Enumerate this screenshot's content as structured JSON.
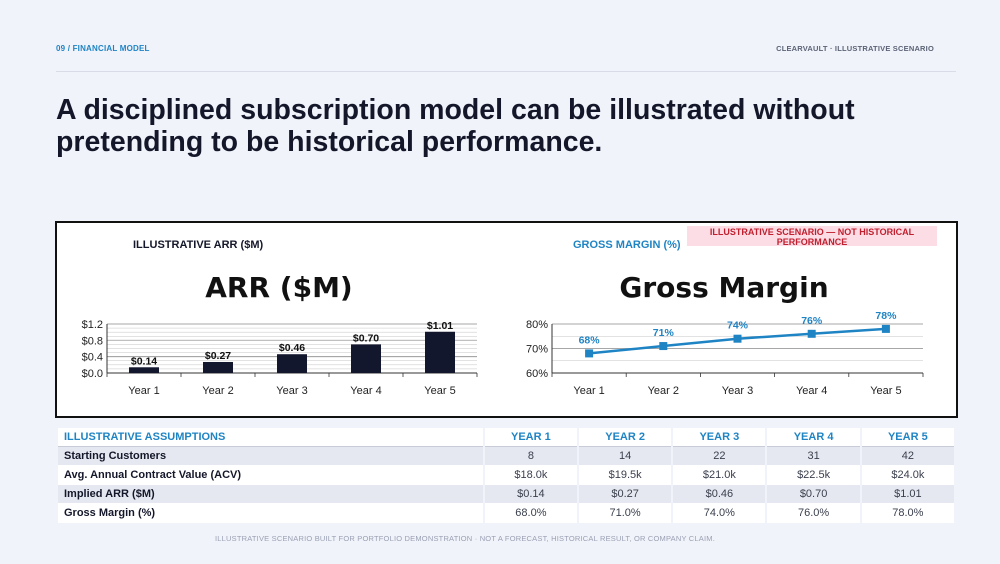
{
  "header": {
    "section": "09 / FINANCIAL MODEL",
    "brand": "CLEARVAULT · ILLUSTRATIVE SCENARIO",
    "headline": "A disciplined subscription model can be illustrated without pretending to be historical performance."
  },
  "banner": "ILLUSTRATIVE SCENARIO — NOT HISTORICAL PERFORMANCE",
  "chart_data": [
    {
      "type": "bar",
      "caption": "ILLUSTRATIVE ARR ($M)",
      "title": "ARR ($M)",
      "categories": [
        "Year 1",
        "Year 2",
        "Year 3",
        "Year 4",
        "Year 5"
      ],
      "values": [
        0.14,
        0.27,
        0.46,
        0.7,
        1.01
      ],
      "data_labels": [
        "$0.14",
        "$0.27",
        "$0.46",
        "$0.70",
        "$1.01"
      ],
      "ylim": [
        0,
        1.2
      ],
      "yticks": [
        0.0,
        0.4,
        0.8,
        1.2
      ],
      "ytick_labels": [
        "$0.0",
        "$0.4",
        "$0.8",
        "$1.2"
      ],
      "grid": true,
      "color": "#13172e"
    },
    {
      "type": "line",
      "caption": "GROSS MARGIN (%)",
      "title": "Gross Margin",
      "categories": [
        "Year 1",
        "Year 2",
        "Year 3",
        "Year 4",
        "Year 5"
      ],
      "values": [
        68,
        71,
        74,
        76,
        78
      ],
      "data_labels": [
        "68%",
        "71%",
        "74%",
        "76%",
        "78%"
      ],
      "ylim": [
        60,
        80
      ],
      "yticks": [
        60,
        70,
        80
      ],
      "ytick_labels": [
        "60%",
        "70%",
        "80%"
      ],
      "grid": true,
      "color": "#1f84c4"
    }
  ],
  "table": {
    "columns": [
      "ILLUSTRATIVE ASSUMPTIONS",
      "YEAR 1",
      "YEAR 2",
      "YEAR 3",
      "YEAR 4",
      "YEAR 5"
    ],
    "rows": [
      [
        "Starting Customers",
        "8",
        "14",
        "22",
        "31",
        "42"
      ],
      [
        "Avg. Annual Contract Value (ACV)",
        "$18.0k",
        "$19.5k",
        "$21.0k",
        "$22.5k",
        "$24.0k"
      ],
      [
        "Implied ARR ($M)",
        "$0.14",
        "$0.27",
        "$0.46",
        "$0.70",
        "$1.01"
      ],
      [
        "Gross Margin (%)",
        "68.0%",
        "71.0%",
        "74.0%",
        "76.0%",
        "78.0%"
      ]
    ]
  },
  "footnote": "ILLUSTRATIVE SCENARIO BUILT FOR PORTFOLIO DEMONSTRATION · NOT A FORECAST, HISTORICAL RESULT, OR COMPANY CLAIM."
}
